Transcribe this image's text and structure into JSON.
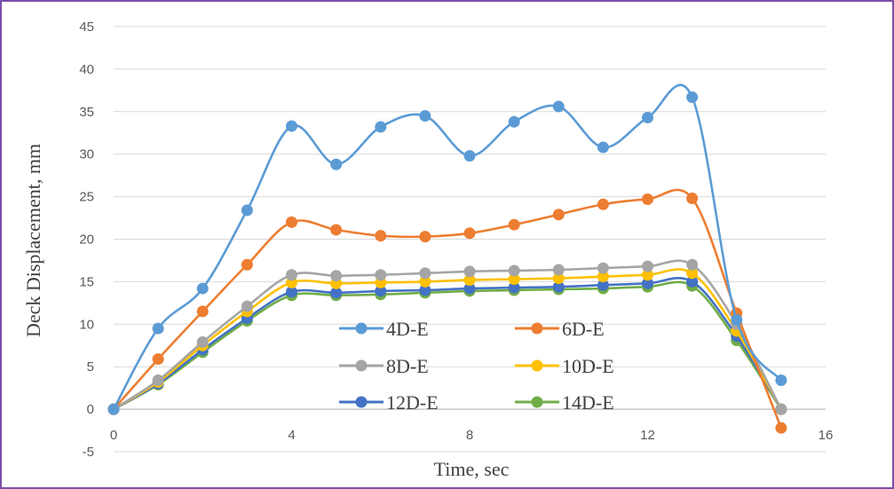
{
  "chart_data": {
    "type": "line",
    "title": "",
    "xlabel": "Time, sec",
    "ylabel": "Deck Displacement, mm",
    "xlim": [
      0,
      16
    ],
    "ylim": [
      -5,
      45
    ],
    "x_ticks": [
      0,
      4,
      8,
      12,
      16
    ],
    "y_ticks": [
      -5,
      0,
      5,
      10,
      15,
      20,
      25,
      30,
      35,
      40,
      45
    ],
    "grid": "horizontal",
    "legend_position": "bottom-center, inside plot",
    "smoothed": true,
    "x": [
      0,
      1,
      2,
      3,
      4,
      5,
      6,
      7,
      8,
      9,
      10,
      11,
      12,
      13,
      14,
      15
    ],
    "series": [
      {
        "name": "4D-E",
        "color": "#5b9bd5",
        "values": [
          0,
          9.5,
          14.2,
          23.4,
          33.3,
          28.8,
          33.2,
          34.5,
          29.8,
          33.8,
          35.6,
          30.8,
          34.3,
          36.7,
          10.5,
          3.4
        ]
      },
      {
        "name": "6D-E",
        "color": "#ed7d31",
        "values": [
          0,
          5.9,
          11.5,
          17.0,
          22.0,
          21.1,
          20.4,
          20.3,
          20.7,
          21.7,
          22.9,
          24.1,
          24.7,
          24.8,
          11.3,
          -2.2
        ]
      },
      {
        "name": "8D-E",
        "color": "#a5a5a5",
        "values": [
          0,
          3.4,
          7.9,
          12.1,
          15.8,
          15.7,
          15.8,
          16.0,
          16.2,
          16.3,
          16.4,
          16.6,
          16.8,
          17.0,
          10.0,
          0
        ]
      },
      {
        "name": "10D-E",
        "color": "#ffc000",
        "values": [
          0,
          3.2,
          7.5,
          11.5,
          14.9,
          14.8,
          14.9,
          15.0,
          15.2,
          15.3,
          15.4,
          15.6,
          15.8,
          16.0,
          9.2,
          0
        ]
      },
      {
        "name": "12D-E",
        "color": "#4472c4",
        "values": [
          0,
          3.0,
          7.0,
          10.7,
          13.8,
          13.7,
          13.9,
          14.0,
          14.2,
          14.3,
          14.4,
          14.6,
          14.8,
          15.0,
          8.6,
          0
        ]
      },
      {
        "name": "14D-E",
        "color": "#70ad47",
        "values": [
          0,
          2.9,
          6.7,
          10.4,
          13.4,
          13.4,
          13.5,
          13.7,
          13.9,
          14.0,
          14.1,
          14.2,
          14.4,
          14.5,
          8.1,
          0
        ]
      }
    ]
  }
}
